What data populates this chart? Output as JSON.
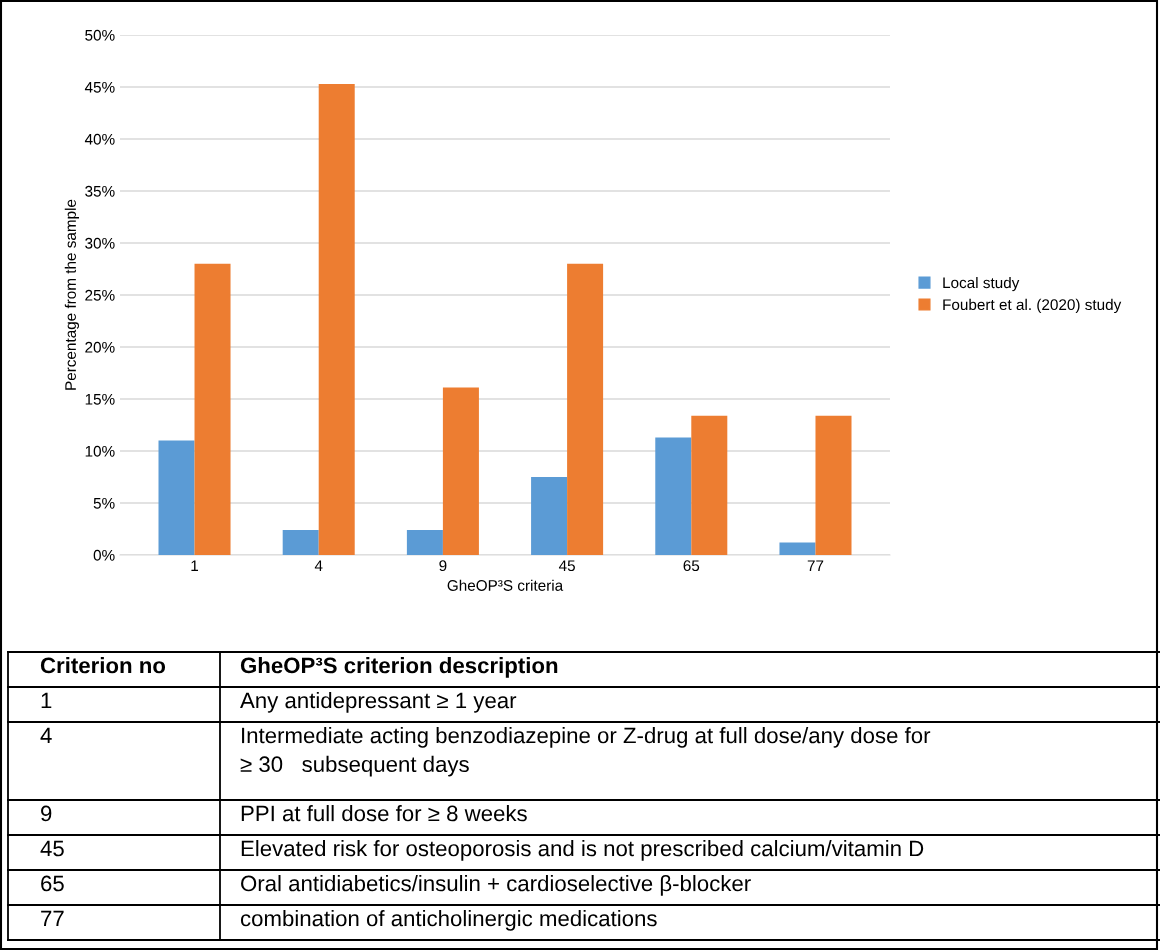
{
  "chart_data": {
    "type": "bar",
    "xlabel": "GheOP³S criteria",
    "ylabel": "Percentage from the sample",
    "categories": [
      "1",
      "4",
      "9",
      "45",
      "65",
      "77"
    ],
    "series": [
      {
        "name": "Local study",
        "color": "#5b9bd5",
        "values": [
          11.0,
          2.4,
          2.4,
          7.5,
          11.3,
          1.2
        ]
      },
      {
        "name": "Foubert et al. (2020) study",
        "color": "#ed7d31",
        "values": [
          28.0,
          45.3,
          16.1,
          28.0,
          13.4,
          13.4
        ]
      }
    ],
    "ylim": [
      0,
      50
    ],
    "yticks": [
      {
        "value": 0,
        "label": "0%"
      },
      {
        "value": 5,
        "label": "5%"
      },
      {
        "value": 10,
        "label": "10%"
      },
      {
        "value": 15,
        "label": "15%"
      },
      {
        "value": 20,
        "label": "20%"
      },
      {
        "value": 25,
        "label": "25%"
      },
      {
        "value": 30,
        "label": "30%"
      },
      {
        "value": 35,
        "label": "35%"
      },
      {
        "value": 40,
        "label": "40%"
      },
      {
        "value": 45,
        "label": "45%"
      },
      {
        "value": 50,
        "label": "50%"
      }
    ],
    "grid": "y",
    "legend": "right",
    "annotations": [
      "Criterion no",
      "GheOP³S criterion description",
      "1",
      "Any antidepressant ≥ 1 year",
      "4",
      "Intermediate acting benzodiazepine or Z-drug at full dose/any dose for\n≥ 30   subsequent days",
      "9",
      "PPI at full dose for ≥ 8 weeks",
      "45",
      "Elevated risk for osteoporosis and is not prescribed calcium/vitamin D",
      "65",
      "Oral antidiabetics/insulin + cardioselective β-blocker",
      "77",
      "combination of anticholinergic medications"
    ]
  }
}
